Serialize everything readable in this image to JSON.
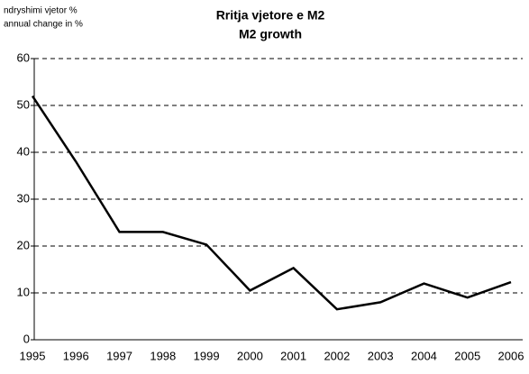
{
  "chart_data": {
    "type": "line",
    "title": [
      "Rritja vjetore e M2",
      "M2 growth"
    ],
    "y_label": [
      "ndryshimi vjetor %",
      "annual change in %"
    ],
    "categories": [
      "1995",
      "1996",
      "1997",
      "1998",
      "1999",
      "2000",
      "2001",
      "2002",
      "2003",
      "2004",
      "2005",
      "2006"
    ],
    "series": [
      {
        "name": "M2",
        "color": "#000000",
        "values": [
          52,
          38,
          23,
          23,
          20.3,
          10.5,
          15.3,
          6.5,
          8,
          12,
          9,
          12.3
        ]
      }
    ],
    "ylim": [
      0,
      60
    ],
    "yticks": [
      0,
      10,
      20,
      30,
      40,
      50,
      60
    ],
    "grid": true
  }
}
